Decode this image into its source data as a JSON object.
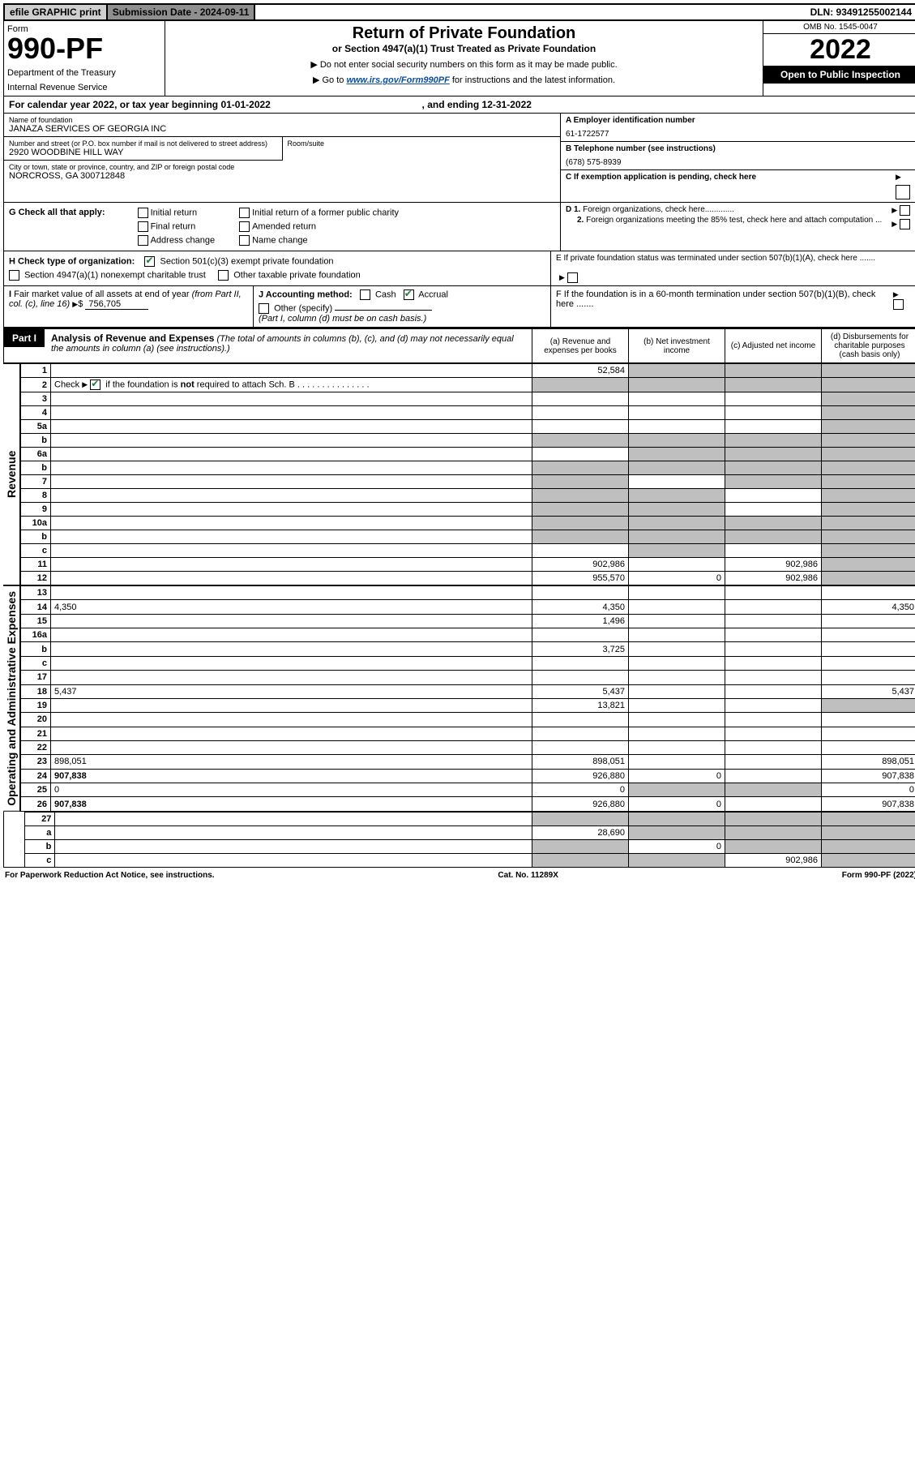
{
  "topbar": {
    "efile": "efile GRAPHIC print",
    "subdate": "Submission Date - 2024-09-11",
    "dln": "DLN: 93491255002144"
  },
  "header": {
    "form_label": "Form",
    "form_number": "990-PF",
    "dept": "Department of the Treasury",
    "irs": "Internal Revenue Service",
    "title1": "Return of Private Foundation",
    "title2": "or Section 4947(a)(1) Trust Treated as Private Foundation",
    "instr1": "▶ Do not enter social security numbers on this form as it may be made public.",
    "instr2_pre": "▶ Go to ",
    "instr2_link": "www.irs.gov/Form990PF",
    "instr2_post": " for instructions and the latest information.",
    "omb": "OMB No. 1545-0047",
    "year": "2022",
    "open_pub": "Open to Public Inspection"
  },
  "cal_year": {
    "text_pre": "For calendar year 2022, or tax year beginning ",
    "begin": "01-01-2022",
    "mid": " , and ending ",
    "end": "12-31-2022"
  },
  "info": {
    "name_label": "Name of foundation",
    "name": "JANAZA SERVICES OF GEORGIA INC",
    "addr_label": "Number and street (or P.O. box number if mail is not delivered to street address)",
    "addr": "2920 WOODBINE HILL WAY",
    "room_label": "Room/suite",
    "city_label": "City or town, state or province, country, and ZIP or foreign postal code",
    "city": "NORCROSS, GA  300712848",
    "a_label": "A Employer identification number",
    "a_val": "61-1722577",
    "b_label": "B Telephone number (see instructions)",
    "b_val": "(678) 575-8939",
    "c_label": "C If exemption application is pending, check here",
    "d1": "D 1. Foreign organizations, check here.............",
    "d2": "2. Foreign organizations meeting the 85% test, check here and attach computation ...",
    "e": "E  If private foundation status was terminated under section 507(b)(1)(A), check here .......",
    "f": "F  If the foundation is in a 60-month termination under section 507(b)(1)(B), check here ......."
  },
  "g": {
    "label": "G Check all that apply:",
    "opts": [
      "Initial return",
      "Final return",
      "Address change",
      "Initial return of a former public charity",
      "Amended return",
      "Name change"
    ]
  },
  "h": {
    "label": "H Check type of organization:",
    "o1": "Section 501(c)(3) exempt private foundation",
    "o2": "Section 4947(a)(1) nonexempt charitable trust",
    "o3": "Other taxable private foundation"
  },
  "i": {
    "label": "I Fair market value of all assets at end of year (from Part II, col. (c), line 16)",
    "val": "756,705"
  },
  "j": {
    "label": "J Accounting method:",
    "cash": "Cash",
    "accrual": "Accrual",
    "other": "Other (specify)",
    "note": "(Part I, column (d) must be on cash basis.)"
  },
  "part1": {
    "tab": "Part I",
    "title": "Analysis of Revenue and Expenses",
    "title_paren": " (The total of amounts in columns (b), (c), and (d) may not necessarily equal the amounts in column (a) (see instructions).)",
    "cols": {
      "a": "(a) Revenue and expenses per books",
      "b": "(b) Net investment income",
      "c": "(c) Adjusted net income",
      "d": "(d) Disbursements for charitable purposes (cash basis only)"
    }
  },
  "side": {
    "rev": "Revenue",
    "exp": "Operating and Administrative Expenses"
  },
  "rows": [
    {
      "n": "1",
      "d": "",
      "a": "52,584",
      "b": "",
      "c": "",
      "sb": true,
      "sc": true,
      "sd": true
    },
    {
      "n": "2",
      "d": "",
      "a": "",
      "b": "",
      "c": "",
      "sa": true,
      "sb": true,
      "sc": true,
      "sd": true,
      "check2": true
    },
    {
      "n": "3",
      "d": "",
      "a": "",
      "b": "",
      "c": "",
      "sd": true
    },
    {
      "n": "4",
      "d": "",
      "a": "",
      "b": "",
      "c": "",
      "sd": true
    },
    {
      "n": "5a",
      "d": "",
      "a": "",
      "b": "",
      "c": "",
      "sd": true
    },
    {
      "n": "b",
      "d": "",
      "a": "",
      "b": "",
      "c": "",
      "sa": true,
      "sb": true,
      "sc": true,
      "sd": true
    },
    {
      "n": "6a",
      "d": "",
      "a": "",
      "b": "",
      "c": "",
      "sb": true,
      "sc": true,
      "sd": true
    },
    {
      "n": "b",
      "d": "",
      "a": "",
      "b": "",
      "c": "",
      "sa": true,
      "sb": true,
      "sc": true,
      "sd": true
    },
    {
      "n": "7",
      "d": "",
      "a": "",
      "b": "",
      "c": "",
      "sa": true,
      "sc": true,
      "sd": true
    },
    {
      "n": "8",
      "d": "",
      "a": "",
      "b": "",
      "c": "",
      "sa": true,
      "sb": true,
      "sd": true
    },
    {
      "n": "9",
      "d": "",
      "a": "",
      "b": "",
      "c": "",
      "sa": true,
      "sb": true,
      "sd": true
    },
    {
      "n": "10a",
      "d": "",
      "a": "",
      "b": "",
      "c": "",
      "sa": true,
      "sb": true,
      "sc": true,
      "sd": true
    },
    {
      "n": "b",
      "d": "",
      "a": "",
      "b": "",
      "c": "",
      "sa": true,
      "sb": true,
      "sc": true,
      "sd": true
    },
    {
      "n": "c",
      "d": "",
      "a": "",
      "b": "",
      "c": "",
      "sb": true,
      "sd": true
    },
    {
      "n": "11",
      "d": "",
      "a": "902,986",
      "b": "",
      "c": "902,986",
      "sd": true
    },
    {
      "n": "12",
      "d": "",
      "a": "955,570",
      "b": "0",
      "c": "902,986",
      "sd": true,
      "bold": true
    }
  ],
  "exp_rows": [
    {
      "n": "13",
      "d": "",
      "a": "",
      "b": "",
      "c": ""
    },
    {
      "n": "14",
      "d": "4,350",
      "a": "4,350",
      "b": "",
      "c": ""
    },
    {
      "n": "15",
      "d": "",
      "a": "1,496",
      "b": "",
      "c": ""
    },
    {
      "n": "16a",
      "d": "",
      "a": "",
      "b": "",
      "c": ""
    },
    {
      "n": "b",
      "d": "",
      "a": "3,725",
      "b": "",
      "c": ""
    },
    {
      "n": "c",
      "d": "",
      "a": "",
      "b": "",
      "c": ""
    },
    {
      "n": "17",
      "d": "",
      "a": "",
      "b": "",
      "c": ""
    },
    {
      "n": "18",
      "d": "5,437",
      "a": "5,437",
      "b": "",
      "c": ""
    },
    {
      "n": "19",
      "d": "",
      "a": "13,821",
      "b": "",
      "c": "",
      "sd": true
    },
    {
      "n": "20",
      "d": "",
      "a": "",
      "b": "",
      "c": ""
    },
    {
      "n": "21",
      "d": "",
      "a": "",
      "b": "",
      "c": ""
    },
    {
      "n": "22",
      "d": "",
      "a": "",
      "b": "",
      "c": ""
    },
    {
      "n": "23",
      "d": "898,051",
      "a": "898,051",
      "b": "",
      "c": ""
    },
    {
      "n": "24",
      "d": "907,838",
      "a": "926,880",
      "b": "0",
      "c": "",
      "bold": true
    },
    {
      "n": "25",
      "d": "0",
      "a": "0",
      "b": "",
      "c": "",
      "sb": true,
      "sc": true
    },
    {
      "n": "26",
      "d": "907,838",
      "a": "926,880",
      "b": "0",
      "c": "",
      "bold": true
    }
  ],
  "bottom_rows": [
    {
      "n": "27",
      "d": "",
      "a": "",
      "b": "",
      "c": "",
      "sa": true,
      "sb": true,
      "sc": true,
      "sd": true
    },
    {
      "n": "a",
      "d": "",
      "a": "28,690",
      "b": "",
      "c": "",
      "sb": true,
      "sc": true,
      "sd": true,
      "bold": true
    },
    {
      "n": "b",
      "d": "",
      "a": "",
      "b": "0",
      "c": "",
      "sa": true,
      "sc": true,
      "sd": true,
      "bold": true
    },
    {
      "n": "c",
      "d": "",
      "a": "",
      "b": "",
      "c": "902,986",
      "sa": true,
      "sb": true,
      "sd": true,
      "bold": true
    }
  ],
  "footer": {
    "left": "For Paperwork Reduction Act Notice, see instructions.",
    "mid": "Cat. No. 11289X",
    "right": "Form 990-PF (2022)"
  },
  "colors": {
    "shade": "#bfbfbf",
    "link": "#0b4ea2",
    "check": "#1a7f37"
  }
}
